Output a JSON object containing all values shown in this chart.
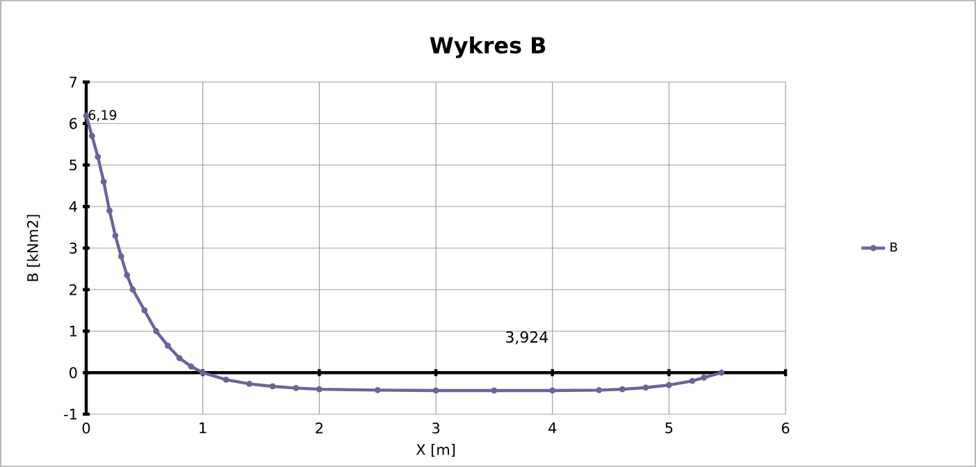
{
  "chart_data": {
    "type": "line",
    "title": "Wykres B",
    "xlabel": "X [m]",
    "ylabel": "B [kNm2]",
    "xlim": [
      0,
      6
    ],
    "xticks": [
      0,
      1,
      2,
      3,
      4,
      5,
      6
    ],
    "ylim": [
      -1,
      7
    ],
    "yticks": [
      -1,
      0,
      1,
      2,
      3,
      4,
      5,
      6,
      7
    ],
    "grid": true,
    "legend": "right",
    "marker": "circle",
    "annotations": [
      "3,924"
    ],
    "x": [
      0,
      0.05,
      0.1,
      0.15,
      0.2,
      0.25,
      0.3,
      0.35,
      0.4,
      0.5,
      0.6,
      0.7,
      0.8,
      0.9,
      1.0,
      1.2,
      1.4,
      1.6,
      1.8,
      2.0,
      2.5,
      3.0,
      3.5,
      4.0,
      4.4,
      4.6,
      4.8,
      5.0,
      5.2,
      5.3,
      5.45
    ],
    "series": [
      {
        "name": "B",
        "color": "#666699",
        "values": [
          6.19,
          5.7,
          5.2,
          4.6,
          3.9,
          3.3,
          2.8,
          2.35,
          2.0,
          1.5,
          1.0,
          0.65,
          0.35,
          0.15,
          0,
          -0.17,
          -0.27,
          -0.33,
          -0.37,
          -0.4,
          -0.42,
          -0.43,
          -0.43,
          -0.43,
          -0.42,
          -0.4,
          -0.36,
          -0.3,
          -0.2,
          -0.12,
          0
        ],
        "value_labels": [
          "6,19",
          null,
          null,
          null,
          null,
          null,
          null,
          null,
          null,
          null,
          null,
          null,
          null,
          null,
          null,
          null,
          null,
          null,
          null,
          null,
          null,
          null,
          null,
          null,
          null,
          null,
          null,
          null,
          null,
          null,
          null
        ]
      }
    ]
  }
}
